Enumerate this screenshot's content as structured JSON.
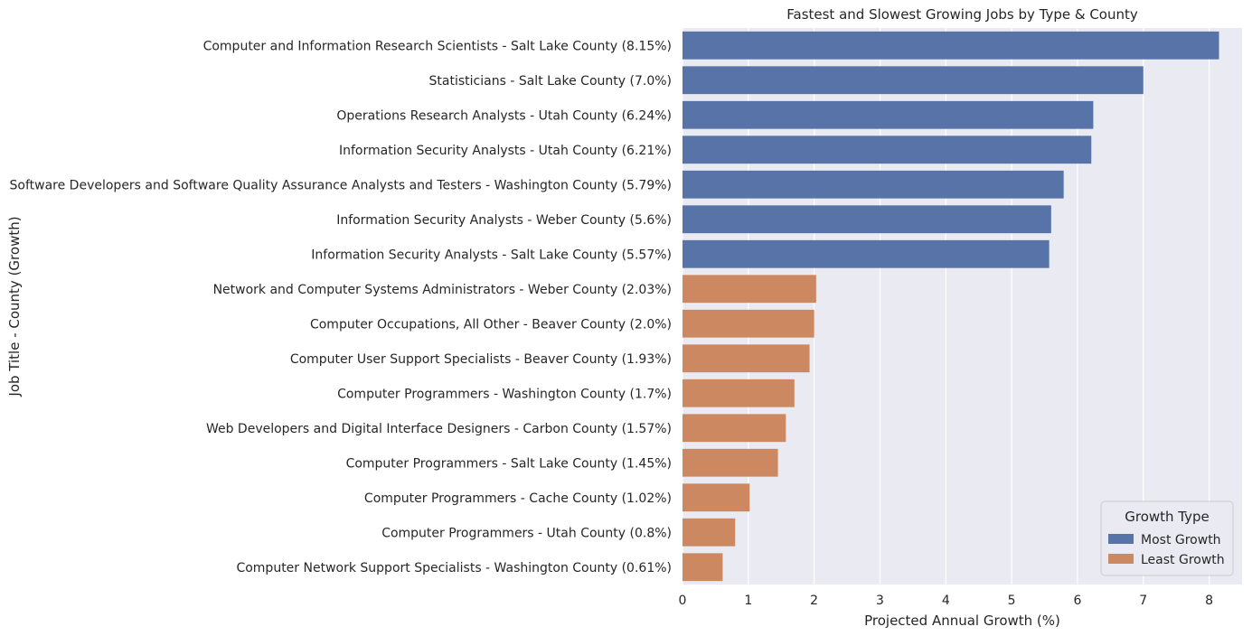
{
  "chart_data": {
    "type": "bar",
    "orientation": "horizontal",
    "title": "Fastest and Slowest Growing Jobs by Type & County",
    "xlabel": "Projected Annual Growth (%)",
    "ylabel": "Job Title - County (Growth)",
    "xlim": [
      0,
      8.5
    ],
    "xticks": [
      0,
      1,
      2,
      3,
      4,
      5,
      6,
      7,
      8
    ],
    "grid": true,
    "legend": {
      "title": "Growth Type",
      "placement": "bottom-right",
      "entries": [
        {
          "label": "Most Growth",
          "color": "#5873a8"
        },
        {
          "label": "Least Growth",
          "color": "#cc8860"
        }
      ]
    },
    "colors": {
      "plot_background": "#eaeaf2",
      "grid": "#ffffff"
    },
    "bars": [
      {
        "label": "Computer and Information Research Scientists - Salt Lake County (8.15%)",
        "value": 8.15,
        "group": "Most Growth"
      },
      {
        "label": "Statisticians - Salt Lake County (7.0%)",
        "value": 7.0,
        "group": "Most Growth"
      },
      {
        "label": "Operations Research Analysts - Utah County (6.24%)",
        "value": 6.24,
        "group": "Most Growth"
      },
      {
        "label": "Information Security Analysts - Utah County (6.21%)",
        "value": 6.21,
        "group": "Most Growth"
      },
      {
        "label": "Software Developers and Software Quality Assurance Analysts and Testers - Washington County (5.79%)",
        "value": 5.79,
        "group": "Most Growth"
      },
      {
        "label": "Information Security Analysts - Weber County (5.6%)",
        "value": 5.6,
        "group": "Most Growth"
      },
      {
        "label": "Information Security Analysts - Salt Lake County (5.57%)",
        "value": 5.57,
        "group": "Most Growth"
      },
      {
        "label": "Network and Computer Systems Administrators - Weber County (2.03%)",
        "value": 2.03,
        "group": "Least Growth"
      },
      {
        "label": "Computer Occupations, All Other - Beaver County (2.0%)",
        "value": 2.0,
        "group": "Least Growth"
      },
      {
        "label": "Computer User Support Specialists - Beaver County (1.93%)",
        "value": 1.93,
        "group": "Least Growth"
      },
      {
        "label": "Computer Programmers - Washington County (1.7%)",
        "value": 1.7,
        "group": "Least Growth"
      },
      {
        "label": "Web Developers and Digital Interface Designers - Carbon County (1.57%)",
        "value": 1.57,
        "group": "Least Growth"
      },
      {
        "label": "Computer Programmers - Salt Lake County (1.45%)",
        "value": 1.45,
        "group": "Least Growth"
      },
      {
        "label": "Computer Programmers - Cache County (1.02%)",
        "value": 1.02,
        "group": "Least Growth"
      },
      {
        "label": "Computer Programmers - Utah County (0.8%)",
        "value": 0.8,
        "group": "Least Growth"
      },
      {
        "label": "Computer Network Support Specialists - Washington County (0.61%)",
        "value": 0.61,
        "group": "Least Growth"
      }
    ]
  }
}
